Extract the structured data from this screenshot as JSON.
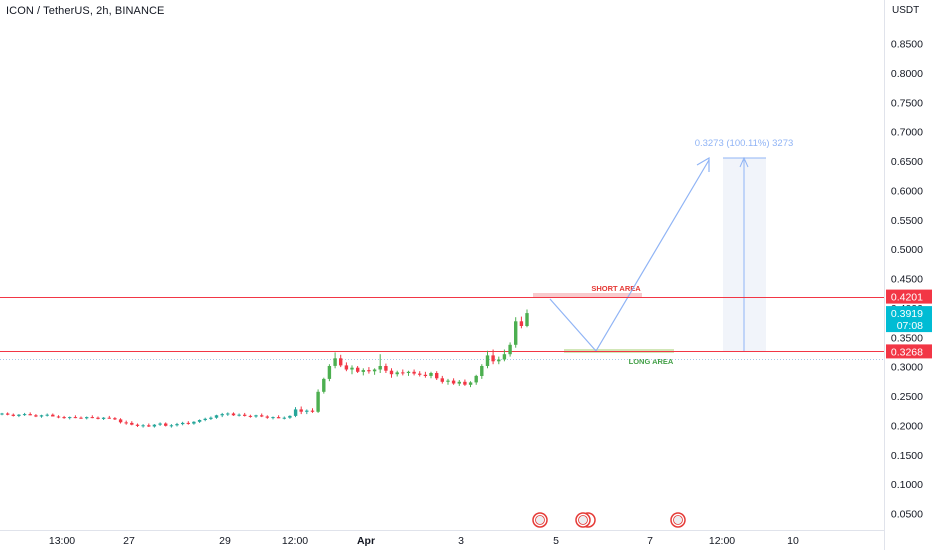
{
  "header": {
    "title": "ICON / TetherUS, 2h, BINANCE",
    "currency": "USDT"
  },
  "chart_data": {
    "type": "candlestick",
    "title": "ICON / TetherUS, 2h, BINANCE",
    "ylabel": "USDT",
    "ylim": [
      0.02,
      0.92
    ],
    "y_ticks": [
      "0.8500",
      "0.8000",
      "0.7500",
      "0.7000",
      "0.6500",
      "0.6000",
      "0.5500",
      "0.5000",
      "0.4500",
      "0.4000",
      "0.3500",
      "0.3000",
      "0.2500",
      "0.2000",
      "0.1500",
      "0.1000",
      "0.0500"
    ],
    "x_ticks": [
      "13:00",
      "27",
      "29",
      "12:00",
      "Apr",
      "3",
      "5",
      "7",
      "12:00",
      "10"
    ],
    "candles": [
      [
        0.22,
        0.222,
        0.218,
        0.221
      ],
      [
        0.221,
        0.223,
        0.218,
        0.219
      ],
      [
        0.219,
        0.221,
        0.216,
        0.217
      ],
      [
        0.217,
        0.22,
        0.215,
        0.219
      ],
      [
        0.219,
        0.222,
        0.217,
        0.22
      ],
      [
        0.22,
        0.223,
        0.218,
        0.218
      ],
      [
        0.218,
        0.22,
        0.215,
        0.216
      ],
      [
        0.216,
        0.219,
        0.214,
        0.218
      ],
      [
        0.218,
        0.221,
        0.216,
        0.219
      ],
      [
        0.219,
        0.221,
        0.216,
        0.216
      ],
      [
        0.216,
        0.218,
        0.213,
        0.215
      ],
      [
        0.215,
        0.217,
        0.212,
        0.214
      ],
      [
        0.214,
        0.216,
        0.211,
        0.215
      ],
      [
        0.215,
        0.218,
        0.213,
        0.214
      ],
      [
        0.214,
        0.216,
        0.212,
        0.213
      ],
      [
        0.213,
        0.216,
        0.211,
        0.215
      ],
      [
        0.215,
        0.218,
        0.213,
        0.214
      ],
      [
        0.214,
        0.216,
        0.211,
        0.212
      ],
      [
        0.212,
        0.215,
        0.21,
        0.214
      ],
      [
        0.214,
        0.217,
        0.212,
        0.213
      ],
      [
        0.213,
        0.215,
        0.21,
        0.211
      ],
      [
        0.211,
        0.213,
        0.204,
        0.206
      ],
      [
        0.206,
        0.209,
        0.202,
        0.205
      ],
      [
        0.205,
        0.208,
        0.201,
        0.202
      ],
      [
        0.202,
        0.204,
        0.198,
        0.2
      ],
      [
        0.2,
        0.203,
        0.197,
        0.201
      ],
      [
        0.201,
        0.204,
        0.198,
        0.199
      ],
      [
        0.199,
        0.203,
        0.197,
        0.202
      ],
      [
        0.202,
        0.206,
        0.2,
        0.204
      ],
      [
        0.204,
        0.206,
        0.199,
        0.2
      ],
      [
        0.2,
        0.203,
        0.197,
        0.201
      ],
      [
        0.201,
        0.205,
        0.199,
        0.203
      ],
      [
        0.203,
        0.207,
        0.201,
        0.205
      ],
      [
        0.205,
        0.208,
        0.202,
        0.204
      ],
      [
        0.204,
        0.208,
        0.202,
        0.207
      ],
      [
        0.207,
        0.211,
        0.205,
        0.21
      ],
      [
        0.21,
        0.214,
        0.208,
        0.212
      ],
      [
        0.212,
        0.216,
        0.21,
        0.214
      ],
      [
        0.214,
        0.219,
        0.212,
        0.218
      ],
      [
        0.218,
        0.222,
        0.215,
        0.22
      ],
      [
        0.22,
        0.223,
        0.217,
        0.221
      ],
      [
        0.221,
        0.223,
        0.217,
        0.218
      ],
      [
        0.218,
        0.221,
        0.216,
        0.219
      ],
      [
        0.219,
        0.222,
        0.216,
        0.217
      ],
      [
        0.217,
        0.219,
        0.214,
        0.216
      ],
      [
        0.216,
        0.219,
        0.214,
        0.218
      ],
      [
        0.218,
        0.221,
        0.215,
        0.216
      ],
      [
        0.216,
        0.218,
        0.212,
        0.214
      ],
      [
        0.214,
        0.216,
        0.211,
        0.215
      ],
      [
        0.215,
        0.218,
        0.213,
        0.213
      ],
      [
        0.213,
        0.216,
        0.211,
        0.214
      ],
      [
        0.214,
        0.218,
        0.212,
        0.217
      ],
      [
        0.217,
        0.232,
        0.215,
        0.228
      ],
      [
        0.228,
        0.233,
        0.22,
        0.224
      ],
      [
        0.224,
        0.228,
        0.22,
        0.226
      ],
      [
        0.226,
        0.23,
        0.222,
        0.224
      ],
      [
        0.224,
        0.262,
        0.222,
        0.258
      ],
      [
        0.258,
        0.282,
        0.255,
        0.28
      ],
      [
        0.28,
        0.305,
        0.276,
        0.302
      ],
      [
        0.302,
        0.325,
        0.298,
        0.315
      ],
      [
        0.315,
        0.321,
        0.3,
        0.303
      ],
      [
        0.303,
        0.308,
        0.293,
        0.296
      ],
      [
        0.296,
        0.303,
        0.288,
        0.299
      ],
      [
        0.299,
        0.302,
        0.29,
        0.292
      ],
      [
        0.292,
        0.298,
        0.286,
        0.295
      ],
      [
        0.295,
        0.3,
        0.289,
        0.293
      ],
      [
        0.293,
        0.298,
        0.287,
        0.296
      ],
      [
        0.296,
        0.322,
        0.29,
        0.302
      ],
      [
        0.302,
        0.306,
        0.29,
        0.294
      ],
      [
        0.294,
        0.298,
        0.282,
        0.288
      ],
      [
        0.288,
        0.294,
        0.284,
        0.291
      ],
      [
        0.291,
        0.296,
        0.286,
        0.29
      ],
      [
        0.29,
        0.294,
        0.285,
        0.292
      ],
      [
        0.292,
        0.296,
        0.286,
        0.289
      ],
      [
        0.289,
        0.293,
        0.284,
        0.287
      ],
      [
        0.287,
        0.292,
        0.282,
        0.285
      ],
      [
        0.285,
        0.292,
        0.281,
        0.29
      ],
      [
        0.29,
        0.293,
        0.278,
        0.281
      ],
      [
        0.281,
        0.285,
        0.272,
        0.275
      ],
      [
        0.275,
        0.28,
        0.27,
        0.277
      ],
      [
        0.277,
        0.281,
        0.27,
        0.272
      ],
      [
        0.272,
        0.278,
        0.268,
        0.275
      ],
      [
        0.275,
        0.279,
        0.268,
        0.27
      ],
      [
        0.27,
        0.276,
        0.266,
        0.274
      ],
      [
        0.274,
        0.287,
        0.27,
        0.285
      ],
      [
        0.285,
        0.305,
        0.28,
        0.302
      ],
      [
        0.302,
        0.328,
        0.298,
        0.32
      ],
      [
        0.32,
        0.33,
        0.305,
        0.31
      ],
      [
        0.31,
        0.318,
        0.305,
        0.313
      ],
      [
        0.313,
        0.33,
        0.31,
        0.322
      ],
      [
        0.322,
        0.342,
        0.318,
        0.338
      ],
      [
        0.338,
        0.385,
        0.333,
        0.378
      ],
      [
        0.378,
        0.386,
        0.366,
        0.37
      ],
      [
        0.37,
        0.398,
        0.368,
        0.392
      ]
    ],
    "levels": [
      {
        "label": "0.4201",
        "value": 0.4201,
        "color": "#f23645"
      },
      {
        "label": "0.3268",
        "value": 0.3268,
        "color": "#f23645"
      }
    ],
    "current_price": {
      "label": "0.3919",
      "countdown": "07:08",
      "value": 0.3919,
      "color": "#00bcd4"
    },
    "annotations": {
      "short_area": "SHORT AREA",
      "long_area": "LONG AREA",
      "measure": "0.3273 (100.11%) 3273"
    },
    "colors": {
      "up": "#26a69a",
      "up_green": "#4caf50",
      "down": "#f23645",
      "projection": "#90b4f5",
      "grid": "#f0f3fa",
      "axis_text": "#131722"
    }
  }
}
